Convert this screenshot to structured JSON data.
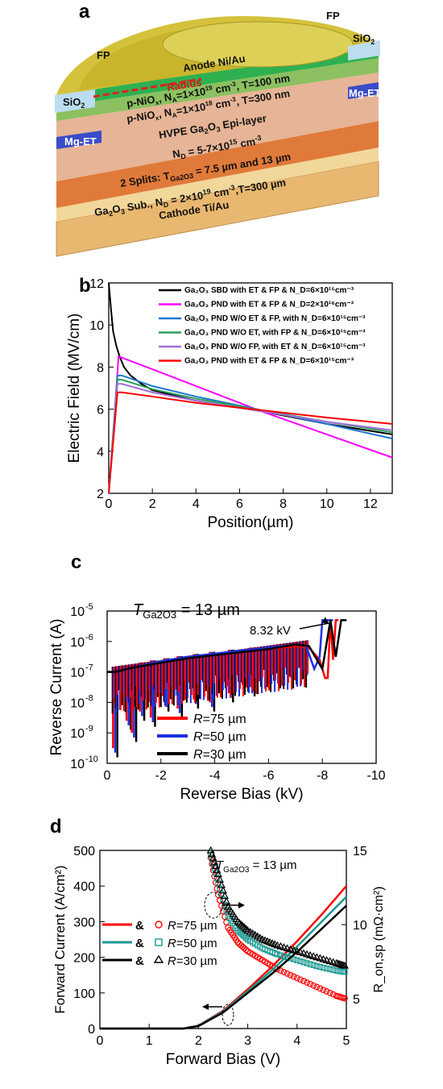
{
  "figure": {
    "panel_a": {
      "label": "a",
      "fp_left": "FP",
      "fp_right": "FP",
      "sio2_left": "SiO",
      "sio2_right": "SiO",
      "sio2_sub": "2",
      "anode": "Anode Ni/Au",
      "radius": "Radius",
      "mg_et_left": "Mg-ET",
      "mg_et_right": "Mg-ET",
      "layer_nio1": "p-NiO",
      "layer_nio1_b": ", N",
      "layer_nio1_c": "=1×10",
      "layer_nio1_d": "19",
      "layer_nio1_e": " cm",
      "layer_nio1_f": ", T=100 nm",
      "layer_nio2": "p-NiO",
      "layer_nio2_b": ", N",
      "layer_nio2_c": "=1×10",
      "layer_nio2_d": "18",
      "layer_nio2_e": " cm",
      "layer_nio2_f": ", T=300 nm",
      "sub_x": "x",
      "sub_a": "A",
      "sup_m3": "-3",
      "epi_a": "HVPE Ga",
      "epi_b": "2",
      "epi_c": "O",
      "epi_d": "3",
      "epi_e": " Epi-layer",
      "nd_a": "N",
      "nd_b": "D",
      "nd_c": " = 5-7×10",
      "nd_d": "15",
      "nd_e": " cm",
      "nd_f": "-3",
      "split_a": "2 Splits: T",
      "split_b": "Ga2O3",
      "split_c": " = 7.5 µm and 13 µm",
      "sub_line_a": "Ga",
      "sub_line_b": "2",
      "sub_line_c": "O",
      "sub_line_d": "3",
      "sub_line_e": " Sub., N",
      "sub_line_f": "D",
      "sub_line_g": " = 2×10",
      "sub_line_h": "19",
      "sub_line_i": " cm",
      "sub_line_j": "-3",
      "sub_line_k": ",T=300 µm",
      "cathode": "Cathode Ti/Au"
    },
    "panel_b": {
      "label": "b"
    },
    "panel_c": {
      "label": "c",
      "thickness_a": "T",
      "thickness_b": "Ga2O3",
      "thickness_c": " = 13 µm",
      "breakdown": "8.32 kV"
    },
    "panel_d": {
      "label": "d",
      "thickness_a": "T",
      "thickness_b": "Ga2O3",
      "thickness_c": " = 13 µm"
    }
  },
  "chart_data": [
    {
      "type": "line",
      "panel": "b",
      "xlabel": "Position(µm)",
      "ylabel": "Electric Field (MV/cm)",
      "xlim": [
        0,
        13
      ],
      "ylim": [
        2,
        12
      ],
      "xticks": [
        "0",
        "2",
        "4",
        "6",
        "8",
        "10",
        "12"
      ],
      "yticks": [
        "2",
        "4",
        "6",
        "8",
        "10",
        "12"
      ],
      "legend_position": "top-right",
      "series": [
        {
          "name": "Ga₂O₃ SBD with ET & FP & N_D=6×10¹⁵cm⁻³",
          "color": "#000000",
          "x": [
            0,
            0.1,
            0.2,
            0.35,
            0.5,
            0.7,
            1.0,
            1.5,
            2,
            4,
            7,
            10,
            13
          ],
          "y": [
            12.0,
            10.8,
            9.7,
            9.0,
            8.5,
            8.0,
            7.6,
            7.2,
            6.9,
            6.4,
            5.9,
            5.3,
            4.8
          ]
        },
        {
          "name": "Ga₂O₃ PND with ET & FP & N_D=2×10¹⁶cm⁻³",
          "color": "#ff00ff",
          "x": [
            0,
            0.25,
            0.45,
            0.6,
            2,
            4,
            7,
            10,
            13
          ],
          "y": [
            2.0,
            5.5,
            8.5,
            8.45,
            7.9,
            7.1,
            5.9,
            4.8,
            3.7
          ]
        },
        {
          "name": "Ga₂O₃ PND W/O ET & FP, with N_D=6×10¹⁵cm⁻³",
          "color": "#1f77d0",
          "x": [
            0,
            0.4,
            0.6,
            2,
            4,
            7,
            10,
            13
          ],
          "y": [
            2.0,
            7.6,
            7.6,
            7.1,
            6.6,
            5.95,
            5.3,
            4.6
          ]
        },
        {
          "name": "Ga₂O₃ PND W/O ET, with FP & N_D=6×10¹⁵cm⁻³",
          "color": "#2ca05a",
          "x": [
            0,
            0.4,
            0.6,
            2,
            4,
            7,
            10,
            13
          ],
          "y": [
            2.0,
            7.4,
            7.4,
            6.95,
            6.5,
            5.95,
            5.4,
            4.9
          ]
        },
        {
          "name": "Ga₂O₃ PND W/O FP, with ET & N_D=6×10¹⁵cm⁻³",
          "color": "#a070d8",
          "x": [
            0,
            0.4,
            0.6,
            2,
            4,
            7,
            10,
            13
          ],
          "y": [
            2.0,
            7.2,
            7.2,
            6.8,
            6.4,
            5.9,
            5.4,
            5.0
          ]
        },
        {
          "name": "Ga₂O₃ PND with ET & FP & N_D=6×10¹⁵cm⁻³",
          "color": "#ff0000",
          "x": [
            0,
            0.4,
            0.6,
            2,
            4,
            7,
            10,
            13
          ],
          "y": [
            2.0,
            6.8,
            6.8,
            6.6,
            6.3,
            5.95,
            5.6,
            5.3
          ]
        }
      ]
    },
    {
      "type": "line",
      "panel": "c",
      "xlabel": "Reverse Bias (kV)",
      "ylabel": "Reverse Current (A)",
      "xlim": [
        0,
        -10
      ],
      "ylim_log10": [
        -10,
        -5
      ],
      "yscale": "log",
      "xticks": [
        "0",
        "-2",
        "-4",
        "-6",
        "-8",
        "-10"
      ],
      "yticks": [
        "10",
        "10",
        "10",
        "10",
        "10",
        "10"
      ],
      "ytick_exp": [
        "-10",
        "-9",
        "-8",
        "-7",
        "-6",
        "-5"
      ],
      "legend_position": "bottom-left",
      "legend_prefix": "R",
      "series": [
        {
          "name": "=75 µm",
          "color": "#ff0000",
          "x": [
            0,
            -0.3,
            -1,
            -2,
            -3,
            -4,
            -5,
            -6,
            -7,
            -7.5,
            -7.9,
            -8.1,
            -8.2,
            -8.3,
            -8.4,
            -8.5,
            -8.6
          ],
          "y_log10": [
            -7.0,
            -7.0,
            -6.85,
            -6.65,
            -6.5,
            -6.45,
            -6.35,
            -6.25,
            -6.15,
            -6.2,
            -6.6,
            -7.2,
            -7.2,
            -5.3,
            -6.6,
            -5.3,
            -5.3
          ]
        },
        {
          "name": "=50 µm",
          "color": "#1f2fe0",
          "x": [
            0,
            -0.3,
            -1,
            -2,
            -3,
            -4,
            -5,
            -6,
            -7,
            -7.4,
            -7.7,
            -7.9,
            -8.0,
            -8.2,
            -8.4
          ],
          "y_log10": [
            -7.0,
            -7.0,
            -6.85,
            -6.65,
            -6.5,
            -6.4,
            -6.3,
            -6.2,
            -6.1,
            -6.15,
            -6.9,
            -6.5,
            -5.3,
            -5.3,
            -5.3
          ]
        },
        {
          "name": "=30 µm",
          "color": "#000000",
          "x": [
            0,
            -0.3,
            -1,
            -2,
            -3,
            -4,
            -5,
            -6,
            -7,
            -7.5,
            -7.8,
            -8.0,
            -8.3,
            -8.5,
            -8.7,
            -8.9
          ],
          "y_log10": [
            -7.0,
            -7.0,
            -6.85,
            -6.7,
            -6.55,
            -6.45,
            -6.35,
            -6.25,
            -6.1,
            -6.15,
            -6.6,
            -6.9,
            -5.3,
            -6.5,
            -5.3,
            -5.3
          ]
        }
      ],
      "dip_x": [
        -0.3,
        -0.8,
        -1.0,
        -1.3,
        -1.7,
        -2.2,
        -2.7,
        -3.3,
        -3.9,
        -4.6,
        -5.4
      ],
      "dip_depth_log10": [
        -9.8,
        -8.9,
        -9.3,
        -8.6,
        -8.8,
        -8.3,
        -8.5,
        -8.2,
        -8.3,
        -8.0,
        -7.8
      ]
    },
    {
      "type": "line",
      "panel": "d",
      "xlabel": "Forward Bias (V)",
      "ylabel": "Forward Current (A/cm²)",
      "y2label": "R_on,sp (mΩ·cm²)",
      "xlim": [
        0,
        5
      ],
      "ylim": [
        0,
        500
      ],
      "y2lim": [
        3,
        15
      ],
      "xticks": [
        "0",
        "1",
        "2",
        "3",
        "4",
        "5"
      ],
      "yticks": [
        "0",
        "100",
        "200",
        "300",
        "400",
        "500"
      ],
      "y2ticks": [
        "5",
        "10",
        "15"
      ],
      "legend_position": "left",
      "legend_sep": "&",
      "legend_prefix": "R",
      "series": [
        {
          "name": "=75 µm",
          "color": "#ff0000",
          "marker": "circle",
          "current_x": [
            0,
            1.7,
            2.0,
            2.5,
            3.0,
            3.5,
            4.0,
            4.5,
            5.0
          ],
          "current_y": [
            0,
            0,
            8,
            50,
            110,
            175,
            245,
            320,
            400
          ],
          "ron_x": [
            2.25,
            2.4,
            2.6,
            2.8,
            3.0,
            3.3,
            3.6,
            4.0,
            4.4,
            4.8,
            5.0
          ],
          "ron_y": [
            14.5,
            12.0,
            9.8,
            8.8,
            8.2,
            7.6,
            7.0,
            6.4,
            5.8,
            5.2,
            5.0
          ]
        },
        {
          "name": "=50 µm",
          "color": "#1a9a90",
          "marker": "square",
          "current_x": [
            0,
            1.7,
            2.0,
            2.5,
            3.0,
            3.5,
            4.0,
            4.5,
            5.0
          ],
          "current_y": [
            0,
            0,
            8,
            48,
            105,
            165,
            230,
            300,
            370
          ],
          "ron_x": [
            2.25,
            2.4,
            2.6,
            2.8,
            3.0,
            3.3,
            3.6,
            4.0,
            4.4,
            4.8,
            5.0
          ],
          "ron_y": [
            14.8,
            12.8,
            10.6,
            9.6,
            9.0,
            8.4,
            8.0,
            7.6,
            7.2,
            6.9,
            6.8
          ]
        },
        {
          "name": "=30 µm",
          "color": "#000000",
          "marker": "triangle",
          "current_x": [
            0,
            1.7,
            2.0,
            2.5,
            3.0,
            3.5,
            4.0,
            4.5,
            5.0
          ],
          "current_y": [
            0,
            0,
            7,
            45,
            100,
            155,
            215,
            280,
            345
          ],
          "ron_x": [
            2.25,
            2.4,
            2.6,
            2.8,
            3.0,
            3.3,
            3.6,
            4.0,
            4.4,
            4.8,
            5.0
          ],
          "ron_y": [
            15.0,
            13.4,
            11.2,
            10.2,
            9.6,
            9.0,
            8.6,
            8.2,
            7.8,
            7.4,
            7.2
          ]
        }
      ]
    }
  ]
}
